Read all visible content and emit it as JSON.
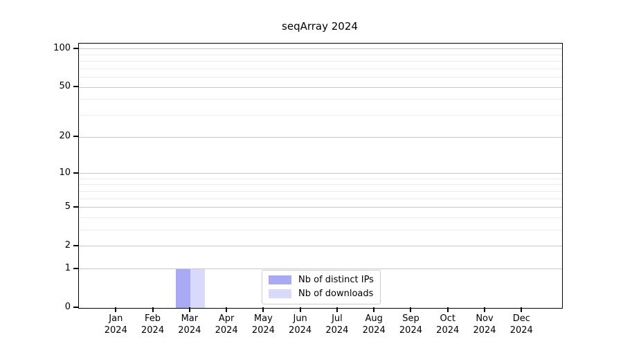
{
  "chart_data": {
    "type": "bar",
    "title": "seqArray 2024",
    "categories": [
      "Jan 2024",
      "Feb 2024",
      "Mar 2024",
      "Apr 2024",
      "May 2024",
      "Jun 2024",
      "Jul 2024",
      "Aug 2024",
      "Sep 2024",
      "Oct 2024",
      "Nov 2024",
      "Dec 2024"
    ],
    "series": [
      {
        "name": "Nb of distinct IPs",
        "color": "#a9a9f5",
        "values": [
          0,
          0,
          1,
          0,
          0,
          0,
          0,
          0,
          0,
          0,
          0,
          0
        ]
      },
      {
        "name": "Nb of downloads",
        "color": "#d9d9fb",
        "values": [
          0,
          0,
          1,
          0,
          0,
          0,
          0,
          0,
          0,
          0,
          0,
          0
        ]
      }
    ],
    "xlabel": "",
    "ylabel": "",
    "y_scale": "log1p",
    "y_major_ticks": [
      0,
      1,
      2,
      5,
      10,
      20,
      50,
      100
    ],
    "y_minor_gridlines": [
      3,
      4,
      6,
      7,
      8,
      9,
      30,
      40,
      60,
      70,
      80,
      90
    ],
    "ylim": [
      0,
      110
    ],
    "grid": true,
    "legend_position": "bottom-center-inside",
    "colors": {
      "major_grid": "#c8c8c8",
      "minor_grid": "#ececec",
      "axis": "#000000",
      "background": "#ffffff"
    }
  }
}
